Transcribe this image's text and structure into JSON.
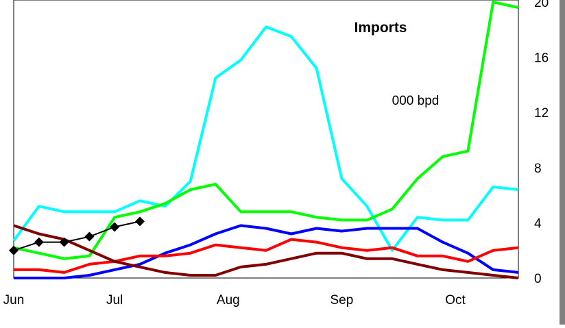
{
  "chart_data": {
    "type": "line",
    "title": "Imports",
    "unit_label": "000 bpd",
    "xlabel": "",
    "ylabel": "",
    "x_labels": [
      "Jun",
      "Jul",
      "Aug",
      "Sep",
      "Oct"
    ],
    "x_label_index": [
      0,
      4,
      8.5,
      13,
      17.5
    ],
    "ylim": [
      0,
      20
    ],
    "yticks": [
      "0",
      "4",
      "8",
      "12",
      "16",
      "20"
    ],
    "grid": false,
    "x_points": 21,
    "series": [
      {
        "color": "#00FFFF",
        "values": [
          2.7,
          5.2,
          4.8,
          4.8,
          4.8,
          5.6,
          5.2,
          7.0,
          14.5,
          15.8,
          18.2,
          17.5,
          15.2,
          7.2,
          5.2,
          2.0,
          4.4,
          4.2,
          4.2,
          6.6,
          6.4
        ]
      },
      {
        "color": "#00FF00",
        "values": [
          2.2,
          1.8,
          1.4,
          1.6,
          4.4,
          4.8,
          5.4,
          6.4,
          6.8,
          4.8,
          4.8,
          4.8,
          4.4,
          4.2,
          4.2,
          5.0,
          7.2,
          8.8,
          9.2,
          20.0,
          19.6
        ]
      },
      {
        "color": "#0000FF",
        "values": [
          0.0,
          0.0,
          0.0,
          0.2,
          0.6,
          1.0,
          1.8,
          2.4,
          3.2,
          3.8,
          3.6,
          3.2,
          3.6,
          3.4,
          3.6,
          3.6,
          3.6,
          2.6,
          1.8,
          0.6,
          0.4
        ]
      },
      {
        "color": "#FF0000",
        "values": [
          0.6,
          0.6,
          0.4,
          1.0,
          1.2,
          1.6,
          1.6,
          1.8,
          2.4,
          2.2,
          2.0,
          2.8,
          2.6,
          2.2,
          2.0,
          2.2,
          1.6,
          1.6,
          1.2,
          2.0,
          2.2
        ]
      },
      {
        "color": "#800000",
        "values": [
          3.8,
          3.2,
          2.8,
          2.0,
          1.2,
          0.8,
          0.4,
          0.2,
          0.2,
          0.8,
          1.0,
          1.4,
          1.8,
          1.8,
          1.4,
          1.4,
          1.0,
          0.6,
          0.4,
          0.2,
          0.0
        ]
      },
      {
        "color": "#000000",
        "marker": "diamond",
        "values": [
          2.0,
          2.6,
          2.6,
          3.0,
          3.7,
          4.1,
          null,
          null,
          null,
          null,
          null,
          null,
          null,
          null,
          null,
          null,
          null,
          null,
          null,
          null,
          null
        ]
      }
    ]
  }
}
